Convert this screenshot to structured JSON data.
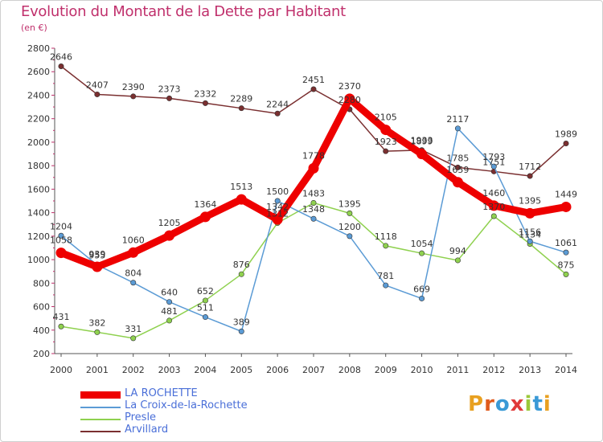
{
  "title": "Evolution du Montant de la Dette par Habitant",
  "unit": "(en €)",
  "brand": {
    "text": "Proxiti",
    "letter_colors": [
      "#e8a020",
      "#e05a1c",
      "#3a9ad6",
      "#e03a3a",
      "#9bc83a",
      "#3a9ad6",
      "#e8a020"
    ]
  },
  "chart_data": {
    "type": "line",
    "x": [
      "2000",
      "2001",
      "2002",
      "2003",
      "2004",
      "2005",
      "2006",
      "2007",
      "2008",
      "2009",
      "2010",
      "2011",
      "2012",
      "2013",
      "2014"
    ],
    "ylim": [
      200,
      2800
    ],
    "yticks": [
      200,
      400,
      600,
      800,
      1000,
      1200,
      1400,
      1600,
      1800,
      2000,
      2200,
      2400,
      2600,
      2800
    ],
    "grid": false,
    "legend_position": "bottom-left",
    "series": [
      {
        "name": "Arvillard",
        "color": "#7a2f30",
        "values": [
          2646,
          2407,
          2390,
          2373,
          2332,
          2289,
          2244,
          2451,
          2280,
          1923,
          1933,
          1785,
          1751,
          1712,
          1989
        ]
      },
      {
        "name": "Presle",
        "color": "#8fd14f",
        "values": [
          431,
          382,
          331,
          481,
          652,
          876,
          1312,
          1483,
          1395,
          1118,
          1054,
          994,
          1370,
          1134,
          875
        ]
      },
      {
        "name": "La Croix-de-la-Rochette",
        "color": "#5b9bd5",
        "values": [
          1204,
          955,
          804,
          640,
          511,
          389,
          1500,
          1348,
          1200,
          781,
          669,
          2117,
          1793,
          1156,
          1061
        ]
      },
      {
        "name": "LA ROCHETTE",
        "color": "#ee0000",
        "values": [
          1058,
          939,
          1060,
          1205,
          1364,
          1513,
          1342,
          1778,
          2370,
          2105,
          1899,
          1659,
          1460,
          1395,
          1449
        ]
      }
    ]
  }
}
